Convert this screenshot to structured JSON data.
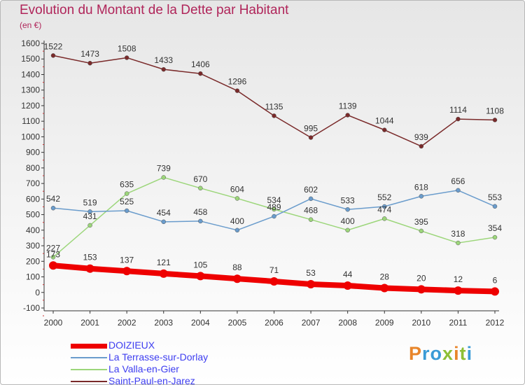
{
  "header": {
    "title": "Evolution du Montant de la Dette par Habitant",
    "unit": "(en €)"
  },
  "logo": {
    "letters": [
      "P",
      "r",
      "o",
      "x",
      "i",
      "t",
      "i"
    ],
    "colors": [
      "#e8852a",
      "#3a9bd6",
      "#3a9bd6",
      "#8dbf35",
      "#e8852a",
      "#8dbf35",
      "#3a9bd6"
    ]
  },
  "chart_data": {
    "type": "line",
    "x": [
      2000,
      2001,
      2002,
      2003,
      2004,
      2005,
      2006,
      2007,
      2008,
      2009,
      2010,
      2011,
      2012
    ],
    "ylim": [
      -100,
      1600
    ],
    "yticks": [
      -100,
      0,
      100,
      200,
      300,
      400,
      500,
      600,
      700,
      800,
      900,
      1000,
      1100,
      1200,
      1300,
      1400,
      1500,
      1600
    ],
    "grid": false,
    "legend_position": "bottom-left",
    "series": [
      {
        "name": "DOIZIEUX",
        "color": "#ee0000",
        "values": [
          173,
          153,
          137,
          121,
          105,
          88,
          71,
          53,
          44,
          28,
          20,
          12,
          6
        ]
      },
      {
        "name": "La Terrasse-sur-Dorlay",
        "color": "#6a9ccc",
        "values": [
          542,
          519,
          525,
          454,
          458,
          400,
          489,
          602,
          533,
          552,
          618,
          656,
          553
        ]
      },
      {
        "name": "La Valla-en-Gier",
        "color": "#9cd67a",
        "values": [
          227,
          431,
          635,
          739,
          670,
          604,
          534,
          468,
          400,
          474,
          395,
          318,
          354
        ]
      },
      {
        "name": "Saint-Paul-en-Jarez",
        "color": "#7a2a2a",
        "values": [
          1522,
          1473,
          1508,
          1433,
          1406,
          1296,
          1135,
          995,
          1139,
          1044,
          939,
          1114,
          1108
        ]
      }
    ],
    "data_labels": [
      {
        "series": 0,
        "labels": [
          "173",
          "153",
          "137",
          "121",
          "105",
          "88",
          "71",
          "53",
          "44",
          "28",
          "20",
          "12",
          "6"
        ]
      },
      {
        "series": 1,
        "labels": [
          "542",
          "519",
          "525",
          "454",
          "458",
          "400",
          "489",
          "602",
          "533",
          "552",
          "618",
          "656",
          "553"
        ]
      },
      {
        "series": 2,
        "labels": [
          "227",
          "431",
          "635",
          "739",
          "670",
          "604",
          "534",
          "468",
          "400",
          "474",
          "395",
          "318",
          "354"
        ]
      },
      {
        "series": 3,
        "labels": [
          "1522",
          "1473",
          "1508",
          "1433",
          "1406",
          "1296",
          "1135",
          "995",
          "1139",
          "1044",
          "939",
          "1114",
          "1108"
        ]
      }
    ]
  }
}
